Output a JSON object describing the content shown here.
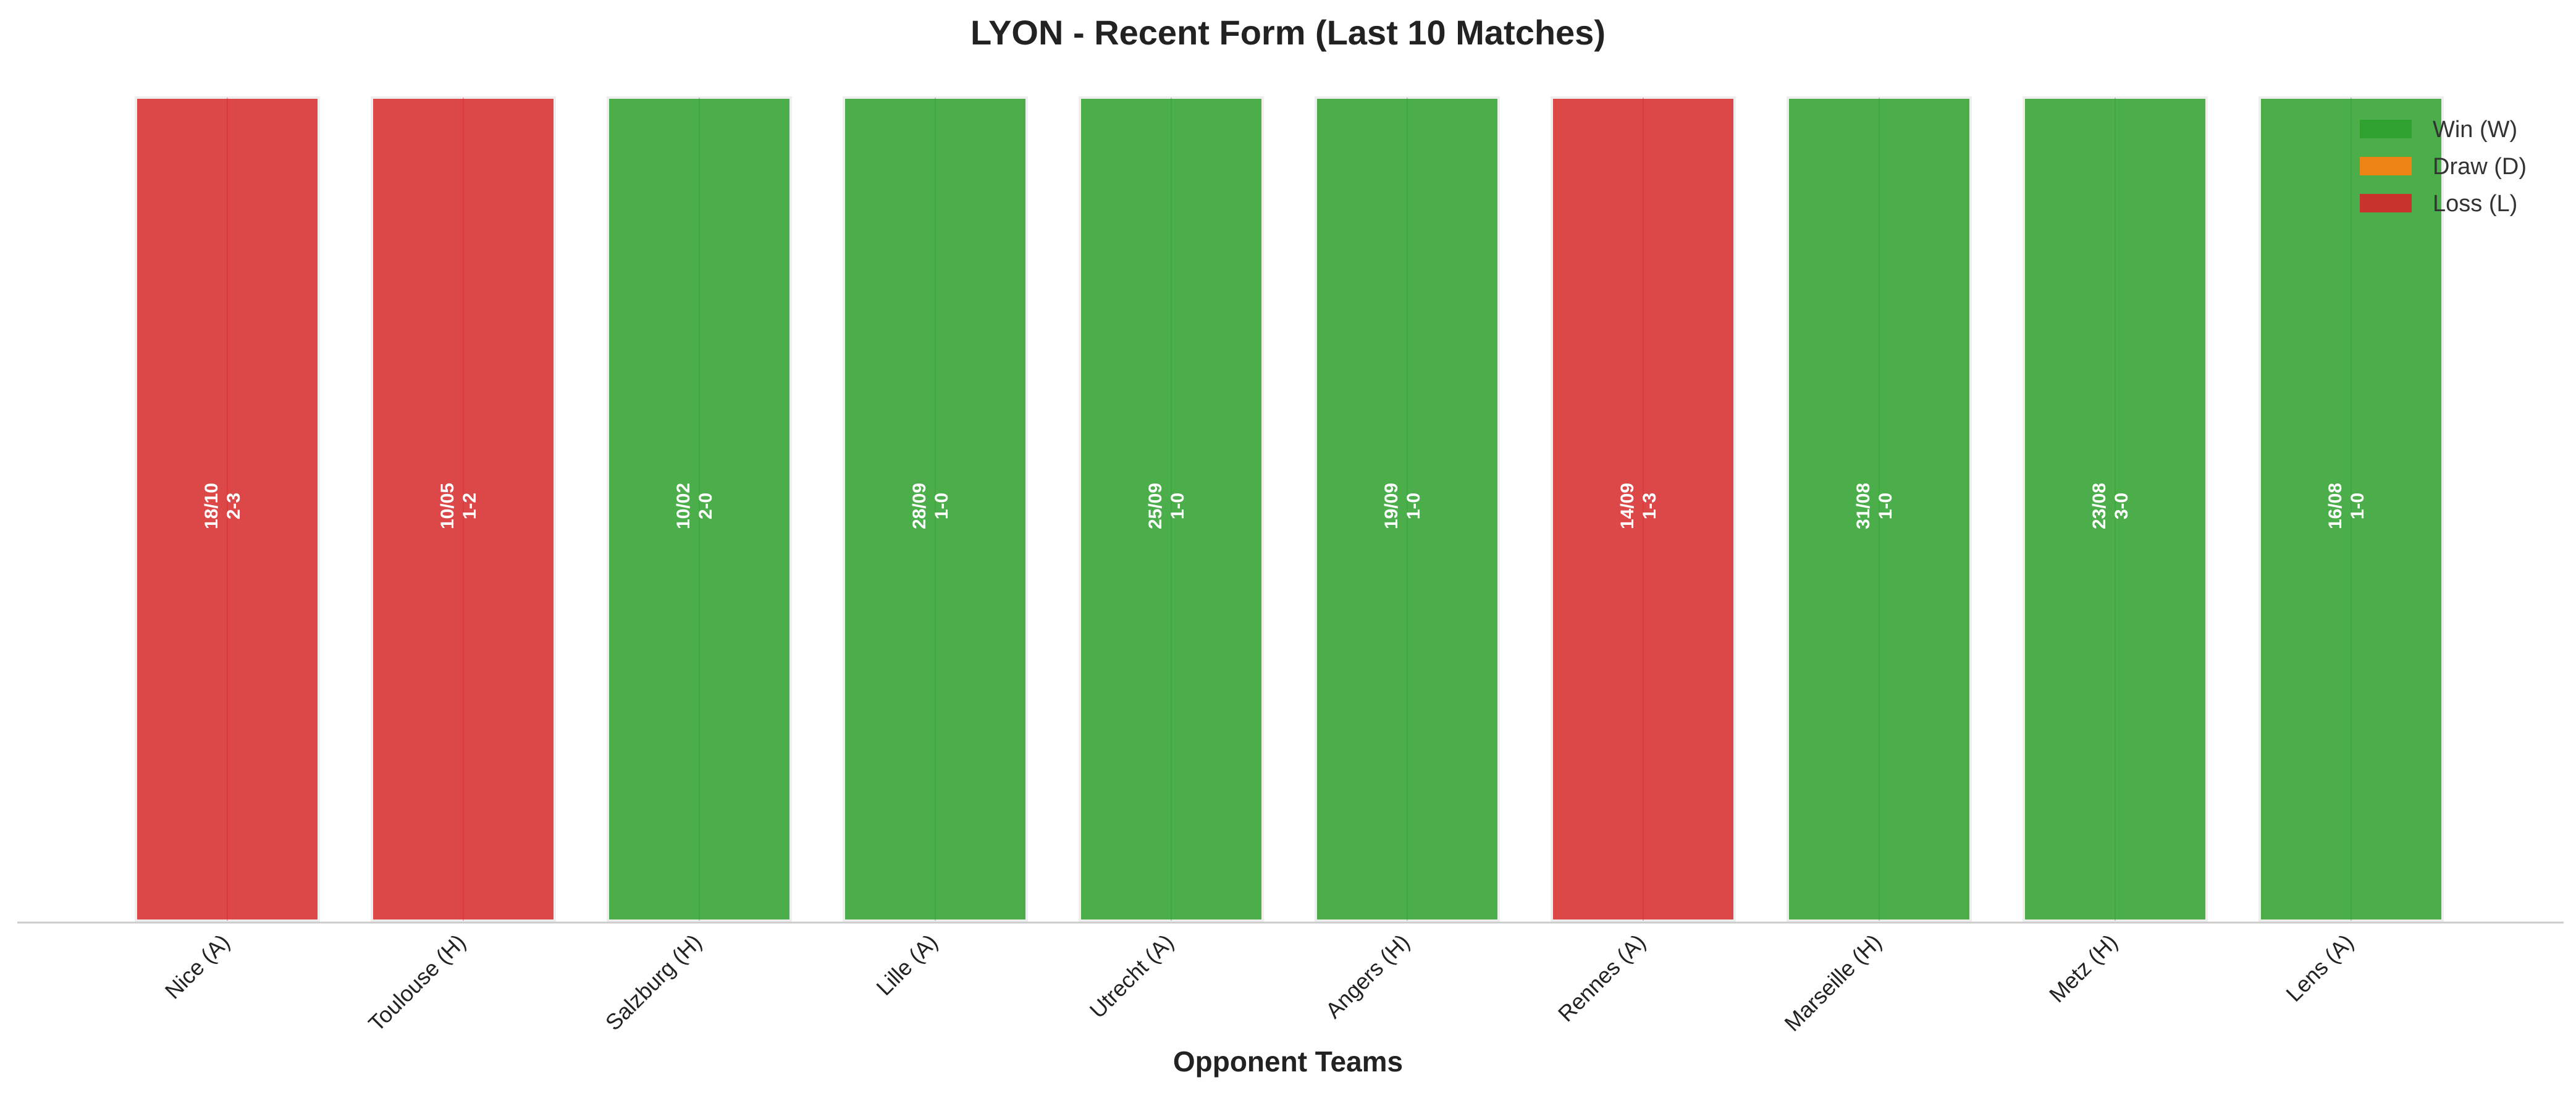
{
  "chart_data": {
    "type": "bar",
    "title": "LYON - Recent Form (Last 10 Matches)",
    "xlabel": "Opponent Teams",
    "ylabel": "",
    "ylim": [
      0,
      1
    ],
    "grid": false,
    "legend_position": "top-right",
    "categories": [
      "Nice (A)",
      "Toulouse (H)",
      "Salzburg (H)",
      "Lille (A)",
      "Utrecht (A)",
      "Angers (H)",
      "Rennes (A)",
      "Marseille (H)",
      "Metz (H)",
      "Lens (A)"
    ],
    "values": [
      1,
      1,
      1,
      1,
      1,
      1,
      1,
      1,
      1,
      1
    ],
    "results": [
      "L",
      "L",
      "W",
      "W",
      "W",
      "W",
      "L",
      "W",
      "W",
      "W"
    ],
    "dates": [
      "18/10",
      "10/05",
      "10/02",
      "28/09",
      "25/09",
      "19/09",
      "14/09",
      "31/08",
      "23/08",
      "16/08"
    ],
    "scores": [
      "2-3",
      "1-2",
      "2-0",
      "1-0",
      "1-0",
      "1-0",
      "1-3",
      "1-0",
      "3-0",
      "1-0"
    ],
    "legend": [
      {
        "key": "W",
        "label": "Win (W)",
        "color": "#2ca02c"
      },
      {
        "key": "D",
        "label": "Draw (D)",
        "color": "#ff7f0e"
      },
      {
        "key": "L",
        "label": "Loss (L)",
        "color": "#d62728"
      }
    ],
    "colors": {
      "W": "#2ca02c",
      "D": "#ff7f0e",
      "L": "#d62728"
    }
  }
}
